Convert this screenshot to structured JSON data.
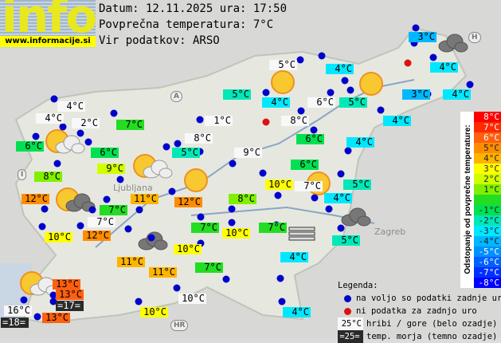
{
  "logo": {
    "text": "info",
    "url": "www.informacije.si"
  },
  "header": {
    "date_line": "Datum: 12.11.2025 ura: 17:50",
    "avg_line": "Povprečna temperatura: 7°C",
    "source_line": "Vir podatkov: ARSO"
  },
  "map_labels_visible": [
    "A",
    "I",
    "H",
    "HR",
    "Ljubljana",
    "Zagreb"
  ],
  "stations": [
    {
      "t": "3°C",
      "dev": -4
    },
    {
      "t": "5°C",
      "style": "hill"
    },
    {
      "t": "4°C",
      "dev": -3
    },
    {
      "t": "4°C",
      "dev": -3
    },
    {
      "t": "3°C",
      "dev": -4
    },
    {
      "t": "4°C",
      "dev": -3
    },
    {
      "t": "5°C",
      "dev": -2
    },
    {
      "t": "4°C",
      "dev": -3
    },
    {
      "t": "6°C",
      "style": "hill"
    },
    {
      "t": "5°C",
      "dev": -2
    },
    {
      "t": "4°C",
      "dev": -3
    },
    {
      "t": "8°C",
      "style": "hill"
    },
    {
      "t": "6°C",
      "dev": -1
    },
    {
      "t": "4°C",
      "dev": -3
    },
    {
      "t": "4°C",
      "style": "hill"
    },
    {
      "t": "4°C",
      "style": "hill"
    },
    {
      "t": "2°C",
      "style": "hill"
    },
    {
      "t": "7°C",
      "dev": 0
    },
    {
      "t": "1°C",
      "style": "hill"
    },
    {
      "t": "6°C",
      "dev": -1
    },
    {
      "t": "6°C",
      "dev": -1
    },
    {
      "t": "8°C",
      "style": "hill"
    },
    {
      "t": "5°C",
      "dev": -2
    },
    {
      "t": "9°C",
      "style": "hill"
    },
    {
      "t": "6°C",
      "dev": -1
    },
    {
      "t": "9°C",
      "dev": 2
    },
    {
      "t": "8°C",
      "dev": 1
    },
    {
      "t": "10°C",
      "dev": 3
    },
    {
      "t": "7°C",
      "style": "hill"
    },
    {
      "t": "5°C",
      "dev": -2
    },
    {
      "t": "4°C",
      "dev": -3
    },
    {
      "t": "12°C",
      "dev": 5
    },
    {
      "t": "11°C",
      "dev": 4
    },
    {
      "t": "12°C",
      "dev": 5
    },
    {
      "t": "8°C",
      "dev": 1
    },
    {
      "t": "7°C",
      "dev": 0
    },
    {
      "t": "7°C",
      "style": "hill"
    },
    {
      "t": "10°C",
      "dev": 3
    },
    {
      "t": "12°C",
      "dev": 5
    },
    {
      "t": "7°C",
      "dev": 0
    },
    {
      "t": "10°C",
      "dev": 3
    },
    {
      "t": "7°C",
      "dev": 0
    },
    {
      "t": "10°C",
      "dev": 3
    },
    {
      "t": "11°C",
      "dev": 4
    },
    {
      "t": "11°C",
      "dev": 4
    },
    {
      "t": "7°C",
      "dev": 0
    },
    {
      "t": "4°C",
      "dev": -3
    },
    {
      "t": "5°C",
      "dev": -2
    },
    {
      "t": "13°C",
      "dev": 6
    },
    {
      "t": "13°C",
      "dev": 6
    },
    {
      "t": "=17=",
      "style": "sea"
    },
    {
      "t": "16°C",
      "style": "hill"
    },
    {
      "t": "=18=",
      "style": "sea"
    },
    {
      "t": "13°C",
      "dev": 6
    },
    {
      "t": "10°C",
      "style": "hill"
    },
    {
      "t": "10°C",
      "dev": 3
    },
    {
      "t": "4°C",
      "dev": -3
    }
  ],
  "weather_icons": [
    "sun",
    "sun",
    "sun",
    "sun",
    "sun-cloud",
    "sun-cloud",
    "sun-cloud",
    "sun-dark-cloud",
    "dark-cloud",
    "dark-cloud",
    "dark-cloud",
    "fog"
  ],
  "scale": {
    "title": "Odstopanje od povprečne temperature:",
    "rows": [
      {
        "label": "8°C",
        "color": "#ff0000"
      },
      {
        "label": "7°C",
        "color": "#ff2a00"
      },
      {
        "label": "6°C",
        "color": "#ff6010"
      },
      {
        "label": "5°C",
        "color": "#ff8c00"
      },
      {
        "label": "4°C",
        "color": "#ffb400"
      },
      {
        "label": "3°C",
        "color": "#ffff00"
      },
      {
        "label": "2°C",
        "color": "#d0ff00"
      },
      {
        "label": "1°C",
        "color": "#80f000"
      },
      {
        "label": "",
        "color": "#22dd22"
      },
      {
        "label": "-1°C",
        "color": "#00e050"
      },
      {
        "label": "-2°C",
        "color": "#00e8b8"
      },
      {
        "label": "-3°C",
        "color": "#00e8ff"
      },
      {
        "label": "-4°C",
        "color": "#00b8ff"
      },
      {
        "label": "-5°C",
        "color": "#0090ff"
      },
      {
        "label": "-6°C",
        "color": "#0060ff"
      },
      {
        "label": "-7°C",
        "color": "#0030ff"
      },
      {
        "label": "-8°C",
        "color": "#0000ff"
      }
    ]
  },
  "legend": {
    "title": "Legenda:",
    "blue": "na voljo so podatki zadnje ure",
    "red": "ni podatka za zadnjo uro",
    "hill_sample": "25°C",
    "hill": "hribi / gore (belo ozadje)",
    "sea_sample": "=25=",
    "sea": "temp. morja (temno ozadje)",
    "colors": {
      "blue_dot": "#0000cc",
      "red_dot": "#dd1111"
    }
  }
}
